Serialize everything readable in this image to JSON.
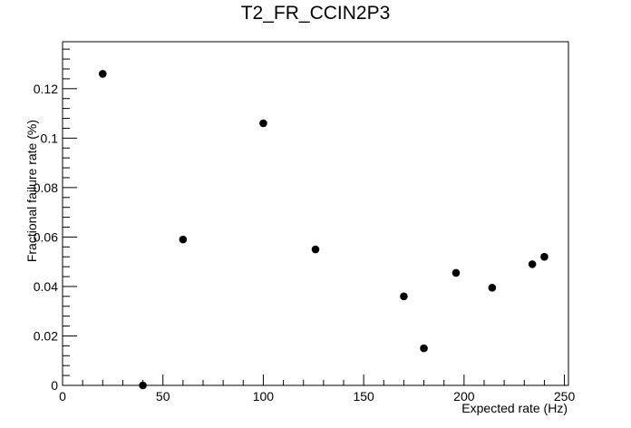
{
  "chart_data": {
    "type": "scatter",
    "title": "T2_FR_CCIN2P3",
    "xlabel": "Expected rate (Hz)",
    "ylabel": "Fractional failure rate (%)",
    "xlim": [
      0,
      252
    ],
    "ylim": [
      0,
      0.139
    ],
    "x_ticks": [
      0,
      50,
      100,
      150,
      200,
      250
    ],
    "x_tick_labels": [
      "0",
      "50",
      "100",
      "150",
      "200",
      "250"
    ],
    "y_ticks": [
      0,
      0.02,
      0.04,
      0.06,
      0.08,
      0.1,
      0.12
    ],
    "y_tick_labels": [
      "0",
      "0.02",
      "0.04",
      "0.06",
      "0.08",
      "0.1",
      "0.12"
    ],
    "grid": false,
    "series": [
      {
        "color": "#000000",
        "points": [
          {
            "x": 20,
            "y": 0.126
          },
          {
            "x": 40,
            "y": 0.0
          },
          {
            "x": 60,
            "y": 0.059
          },
          {
            "x": 100,
            "y": 0.106
          },
          {
            "x": 126,
            "y": 0.055
          },
          {
            "x": 170,
            "y": 0.036
          },
          {
            "x": 180,
            "y": 0.015
          },
          {
            "x": 196,
            "y": 0.0455
          },
          {
            "x": 214,
            "y": 0.0395
          },
          {
            "x": 234,
            "y": 0.049
          },
          {
            "x": 240,
            "y": 0.052
          }
        ]
      }
    ]
  }
}
